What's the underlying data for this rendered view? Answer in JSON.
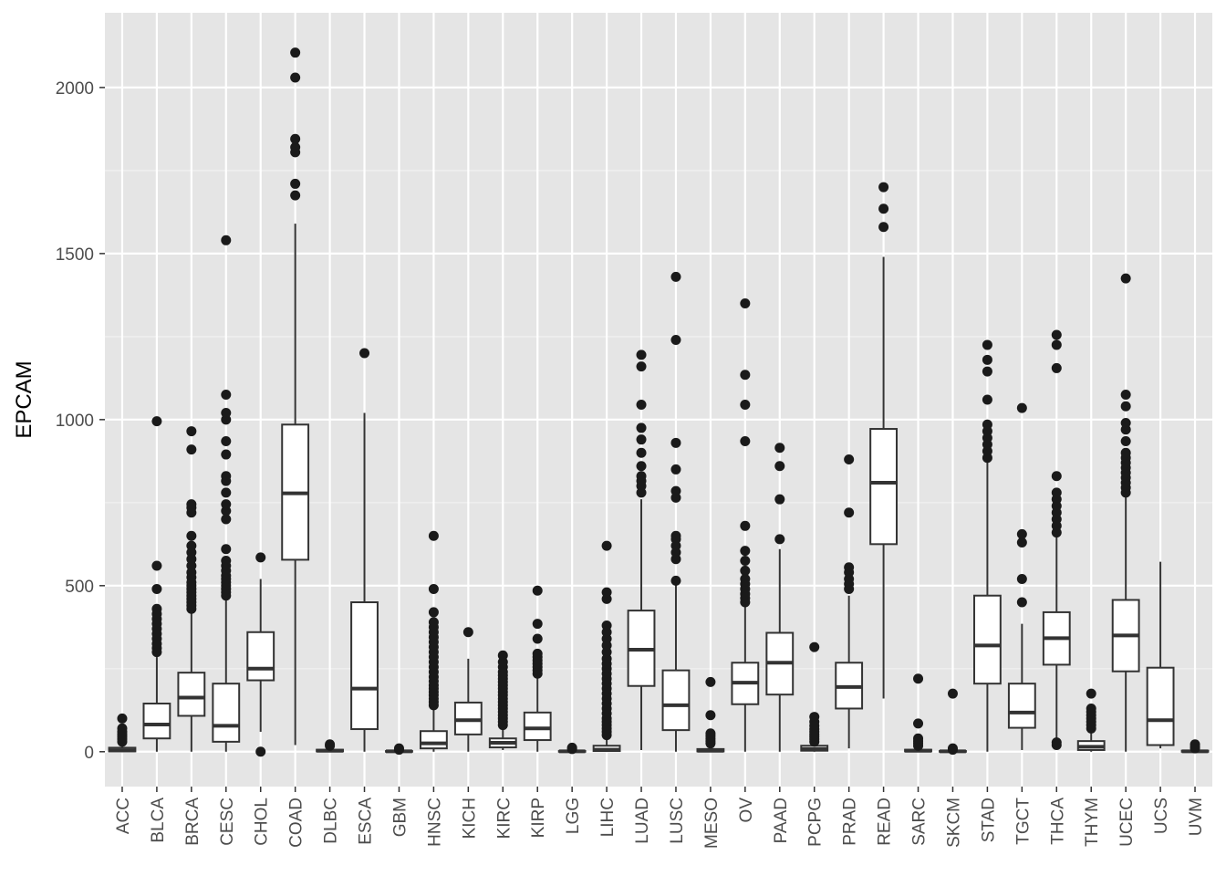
{
  "chart_data": {
    "type": "boxplot",
    "title": "",
    "xlabel": "",
    "ylabel": "EPCAM",
    "ylim": [
      -105,
      2225
    ],
    "yticks": [
      0,
      500,
      1000,
      1500,
      2000
    ],
    "grid": true,
    "legend": "none",
    "colors": {
      "panel": "#e5e5e5",
      "grid_major": "#ffffff",
      "box_fill": "#ffffff",
      "box_stroke": "#333333",
      "outlier": "#1a1a1a",
      "tick_text": "#4d4d4d"
    },
    "series": [
      {
        "name": "ACC",
        "whisker_low": 0,
        "q1": 1,
        "median": 4,
        "q3": 12,
        "whisker_high": 22,
        "outliers": [
          30,
          38,
          45,
          52,
          60,
          70,
          100
        ]
      },
      {
        "name": "BLCA",
        "whisker_low": 0,
        "q1": 40,
        "median": 82,
        "q3": 145,
        "whisker_high": 285,
        "outliers": [
          300,
          312,
          325,
          340,
          355,
          370,
          385,
          400,
          415,
          430,
          490,
          560,
          995
        ]
      },
      {
        "name": "BRCA",
        "whisker_low": 0,
        "q1": 108,
        "median": 163,
        "q3": 238,
        "whisker_high": 420,
        "outliers": [
          430,
          440,
          450,
          460,
          470,
          480,
          490,
          500,
          510,
          525,
          540,
          560,
          580,
          600,
          620,
          650,
          720,
          735,
          745,
          910,
          965
        ]
      },
      {
        "name": "CESC",
        "whisker_low": 0,
        "q1": 30,
        "median": 78,
        "q3": 205,
        "whisker_high": 462,
        "outliers": [
          470,
          480,
          490,
          500,
          510,
          520,
          530,
          545,
          560,
          575,
          610,
          700,
          725,
          745,
          780,
          815,
          830,
          895,
          935,
          1000,
          1020,
          1075,
          1540
        ]
      },
      {
        "name": "CHOL",
        "whisker_low": 60,
        "q1": 215,
        "median": 250,
        "q3": 360,
        "whisker_high": 520,
        "outliers": [
          0,
          585
        ]
      },
      {
        "name": "COAD",
        "whisker_low": 20,
        "q1": 578,
        "median": 778,
        "q3": 985,
        "whisker_high": 1590,
        "outliers": [
          1675,
          1710,
          1805,
          1820,
          1845,
          2030,
          2105
        ]
      },
      {
        "name": "DLBC",
        "whisker_low": 0,
        "q1": 1,
        "median": 3,
        "q3": 6,
        "whisker_high": 12,
        "outliers": [
          18,
          22
        ]
      },
      {
        "name": "ESCA",
        "whisker_low": 0,
        "q1": 68,
        "median": 190,
        "q3": 450,
        "whisker_high": 1020,
        "outliers": [
          1200
        ]
      },
      {
        "name": "GBM",
        "whisker_low": 0,
        "q1": 0,
        "median": 1,
        "q3": 2,
        "whisker_high": 4,
        "outliers": [
          6,
          10
        ]
      },
      {
        "name": "HNSC",
        "whisker_low": 0,
        "q1": 10,
        "median": 25,
        "q3": 62,
        "whisker_high": 130,
        "outliers": [
          140,
          150,
          160,
          170,
          180,
          190,
          200,
          212,
          225,
          240,
          255,
          270,
          285,
          300,
          315,
          330,
          345,
          360,
          375,
          390,
          420,
          490,
          650
        ]
      },
      {
        "name": "KICH",
        "whisker_low": 0,
        "q1": 52,
        "median": 95,
        "q3": 148,
        "whisker_high": 280,
        "outliers": [
          360
        ]
      },
      {
        "name": "KIRC",
        "whisker_low": 5,
        "q1": 13,
        "median": 27,
        "q3": 40,
        "whisker_high": 70,
        "outliers": [
          80,
          90,
          100,
          110,
          120,
          130,
          140,
          150,
          160,
          170,
          180,
          190,
          200,
          210,
          220,
          230,
          240,
          255,
          270,
          290
        ]
      },
      {
        "name": "KIRP",
        "whisker_low": 0,
        "q1": 35,
        "median": 70,
        "q3": 118,
        "whisker_high": 225,
        "outliers": [
          235,
          245,
          255,
          265,
          275,
          285,
          295,
          340,
          385,
          485
        ]
      },
      {
        "name": "LGG",
        "whisker_low": 0,
        "q1": 0,
        "median": 1,
        "q3": 2,
        "whisker_high": 4,
        "outliers": [
          8,
          12
        ]
      },
      {
        "name": "LIHC",
        "whisker_low": 0,
        "q1": 2,
        "median": 6,
        "q3": 18,
        "whisker_high": 40,
        "outliers": [
          50,
          60,
          70,
          80,
          90,
          100,
          115,
          130,
          145,
          160,
          175,
          190,
          205,
          220,
          235,
          250,
          265,
          280,
          300,
          320,
          340,
          360,
          380,
          460,
          480,
          620
        ]
      },
      {
        "name": "LUAD",
        "whisker_low": 5,
        "q1": 198,
        "median": 307,
        "q3": 425,
        "whisker_high": 760,
        "outliers": [
          780,
          800,
          815,
          830,
          860,
          900,
          940,
          975,
          1045,
          1160,
          1195
        ]
      },
      {
        "name": "LUSC",
        "whisker_low": 0,
        "q1": 65,
        "median": 140,
        "q3": 245,
        "whisker_high": 505,
        "outliers": [
          515,
          580,
          600,
          620,
          640,
          650,
          765,
          785,
          850,
          930,
          1240,
          1430
        ]
      },
      {
        "name": "MESO",
        "whisker_low": 0,
        "q1": 1,
        "median": 3,
        "q3": 8,
        "whisker_high": 18,
        "outliers": [
          25,
          32,
          40,
          48,
          55,
          110,
          210
        ]
      },
      {
        "name": "OV",
        "whisker_low": 0,
        "q1": 143,
        "median": 208,
        "q3": 268,
        "whisker_high": 440,
        "outliers": [
          450,
          462,
          475,
          490,
          505,
          520,
          545,
          575,
          605,
          680,
          935,
          1045,
          1135,
          1350
        ]
      },
      {
        "name": "PAAD",
        "whisker_low": 0,
        "q1": 172,
        "median": 268,
        "q3": 358,
        "whisker_high": 610,
        "outliers": [
          640,
          760,
          860,
          915
        ]
      },
      {
        "name": "PCPG",
        "whisker_low": 0,
        "q1": 3,
        "median": 8,
        "q3": 18,
        "whisker_high": 25,
        "outliers": [
          30,
          38,
          45,
          52,
          60,
          68,
          78,
          90,
          105,
          315
        ]
      },
      {
        "name": "PRAD",
        "whisker_low": 10,
        "q1": 130,
        "median": 195,
        "q3": 268,
        "whisker_high": 470,
        "outliers": [
          490,
          505,
          520,
          540,
          555,
          720,
          880
        ]
      },
      {
        "name": "READ",
        "whisker_low": 160,
        "q1": 625,
        "median": 810,
        "q3": 972,
        "whisker_high": 1490,
        "outliers": [
          1580,
          1635,
          1700
        ]
      },
      {
        "name": "SARC",
        "whisker_low": 0,
        "q1": 1,
        "median": 3,
        "q3": 6,
        "whisker_high": 12,
        "outliers": [
          18,
          25,
          32,
          40,
          85,
          220
        ]
      },
      {
        "name": "SKCM",
        "whisker_low": 0,
        "q1": 0,
        "median": 1,
        "q3": 2,
        "whisker_high": 4,
        "outliers": [
          6,
          10,
          175
        ]
      },
      {
        "name": "STAD",
        "whisker_low": 0,
        "q1": 205,
        "median": 320,
        "q3": 470,
        "whisker_high": 875,
        "outliers": [
          885,
          905,
          925,
          945,
          965,
          985,
          1060,
          1145,
          1180,
          1225
        ]
      },
      {
        "name": "TGCT",
        "whisker_low": 5,
        "q1": 72,
        "median": 118,
        "q3": 205,
        "whisker_high": 385,
        "outliers": [
          450,
          520,
          630,
          655,
          1035
        ]
      },
      {
        "name": "THCA",
        "whisker_low": 35,
        "q1": 262,
        "median": 342,
        "q3": 420,
        "whisker_high": 650,
        "outliers": [
          20,
          28,
          660,
          680,
          700,
          720,
          740,
          760,
          780,
          830,
          1155,
          1225,
          1255
        ]
      },
      {
        "name": "THYM",
        "whisker_low": 0,
        "q1": 5,
        "median": 15,
        "q3": 32,
        "whisker_high": 60,
        "outliers": [
          70,
          80,
          90,
          100,
          110,
          120,
          130,
          175
        ]
      },
      {
        "name": "UCEC",
        "whisker_low": 0,
        "q1": 242,
        "median": 350,
        "q3": 457,
        "whisker_high": 770,
        "outliers": [
          780,
          795,
          810,
          825,
          840,
          855,
          870,
          885,
          900,
          935,
          970,
          990,
          1040,
          1075,
          1425
        ]
      },
      {
        "name": "UCS",
        "whisker_low": 10,
        "q1": 20,
        "median": 95,
        "q3": 253,
        "whisker_high": 572,
        "outliers": []
      },
      {
        "name": "UVM",
        "whisker_low": 0,
        "q1": 0,
        "median": 1,
        "q3": 3,
        "whisker_high": 6,
        "outliers": [
          10,
          15,
          22
        ]
      }
    ]
  }
}
